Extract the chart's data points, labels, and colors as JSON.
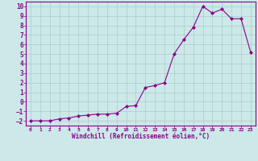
{
  "x": [
    0,
    1,
    2,
    3,
    4,
    5,
    6,
    7,
    8,
    9,
    10,
    11,
    12,
    13,
    14,
    15,
    16,
    17,
    18,
    19,
    20,
    21,
    22,
    23
  ],
  "y": [
    -2,
    -2,
    -2,
    -1.8,
    -1.7,
    -1.5,
    -1.4,
    -1.3,
    -1.3,
    -1.2,
    -0.5,
    -0.4,
    1.5,
    1.7,
    2.0,
    5.0,
    6.5,
    7.8,
    10.0,
    9.3,
    9.7,
    8.7,
    8.7,
    5.2
  ],
  "line_color": "#8B008B",
  "marker": "D",
  "marker_size": 2,
  "bg_color": "#cce8e8",
  "grid_color": "#aacccc",
  "xlabel": "Windchill (Refroidissement éolien,°C)",
  "xlim": [
    -0.5,
    23.5
  ],
  "ylim": [
    -2.5,
    10.5
  ],
  "xticks": [
    0,
    1,
    2,
    3,
    4,
    5,
    6,
    7,
    8,
    9,
    10,
    11,
    12,
    13,
    14,
    15,
    16,
    17,
    18,
    19,
    20,
    21,
    22,
    23
  ],
  "yticks": [
    -2,
    -1,
    0,
    1,
    2,
    3,
    4,
    5,
    6,
    7,
    8,
    9,
    10
  ]
}
